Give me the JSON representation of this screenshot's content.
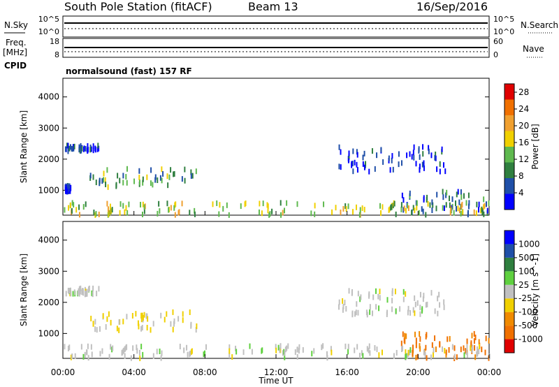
{
  "header": {
    "station": "South Pole Station (fitACF)",
    "beam": "Beam 13",
    "date": "16/Sep/2016"
  },
  "side_labels": {
    "nsky": "N.Sky",
    "freq": "Freq.",
    "freq_unit": "[MHz]",
    "cpid": "CPID",
    "nsearch": "N.Search",
    "nave": "Nave"
  },
  "small_ticks": {
    "nsky_top": "10^5",
    "nsky_bottom": "10^0",
    "freq_top": "18",
    "freq_bottom": "8",
    "nave_top": "60",
    "nave_bottom": "0",
    "nsearch_top": "10^5",
    "nsearch_bottom": "10^0"
  },
  "cpid_label": "normalsound (fast) 157 RF",
  "xaxis": {
    "ticks": [
      "00:00",
      "04:00",
      "08:00",
      "12:00",
      "16:00",
      "20:00",
      "00:00"
    ],
    "label": "Time UT"
  },
  "colors": {
    "power": [
      "#0000ff",
      "#1f4fa8",
      "#2f7f3f",
      "#5fb94f",
      "#f0d000",
      "#f0a030",
      "#f07000",
      "#e00000"
    ],
    "velocity": [
      "#e00000",
      "#f07000",
      "#f08a00",
      "#f0d000",
      "#c0c0c0",
      "#5fd03f",
      "#2f7f3f",
      "#1f4fa8",
      "#0000ff"
    ]
  },
  "chart_data": [
    {
      "type": "heatmap",
      "title": "Power",
      "ylabel": "Slant Range [km]",
      "xlabel": "Time UT",
      "xlim": [
        0,
        24
      ],
      "ylim": [
        200,
        4600
      ],
      "yticks": [
        "1000",
        "2000",
        "3000",
        "4000"
      ],
      "colorbar": {
        "label": "Power [dB]",
        "ticks": [
          "4",
          "8",
          "12",
          "16",
          "20",
          "24",
          "28"
        ],
        "range": [
          0,
          30
        ]
      },
      "regions": [
        {
          "t": [
            0.1,
            2.0
          ],
          "r": [
            2250,
            2450
          ],
          "level": 1
        },
        {
          "t": [
            0.1,
            0.4
          ],
          "r": [
            950,
            1150
          ],
          "level": 1
        },
        {
          "t": [
            1.5,
            7.5
          ],
          "r": [
            1100,
            1700
          ],
          "level": 3
        },
        {
          "t": [
            15.5,
            21.5
          ],
          "r": [
            1600,
            2400
          ],
          "level": 1
        },
        {
          "t": [
            19.0,
            24.0
          ],
          "r": [
            200,
            1000
          ],
          "level": 2
        },
        {
          "t": [
            0.0,
            24.0
          ],
          "r": [
            200,
            600
          ],
          "level": 4
        }
      ]
    },
    {
      "type": "heatmap",
      "title": "Velocity",
      "ylabel": "Slant Range [km]",
      "xlabel": "Time UT",
      "xlim": [
        0,
        24
      ],
      "ylim": [
        200,
        4600
      ],
      "yticks": [
        "1000",
        "2000",
        "3000",
        "4000"
      ],
      "colorbar": {
        "label": "Velocity [m s^-1]",
        "ticks": [
          "1000",
          "500",
          "100",
          "25",
          "-25",
          "-100",
          "-500",
          "-1000"
        ],
        "range": [
          -1000,
          1000
        ]
      },
      "regions": [
        {
          "t": [
            0.1,
            2.0
          ],
          "r": [
            2250,
            2450
          ],
          "velocity": 0
        },
        {
          "t": [
            1.5,
            7.5
          ],
          "r": [
            1100,
            1700
          ],
          "velocity": -150
        },
        {
          "t": [
            15.5,
            21.5
          ],
          "r": [
            1600,
            2400
          ],
          "velocity": 0
        },
        {
          "t": [
            19.0,
            24.0
          ],
          "r": [
            200,
            1000
          ],
          "velocity": -600
        },
        {
          "t": [
            0.0,
            24.0
          ],
          "r": [
            200,
            600
          ],
          "velocity": 0
        }
      ]
    }
  ]
}
